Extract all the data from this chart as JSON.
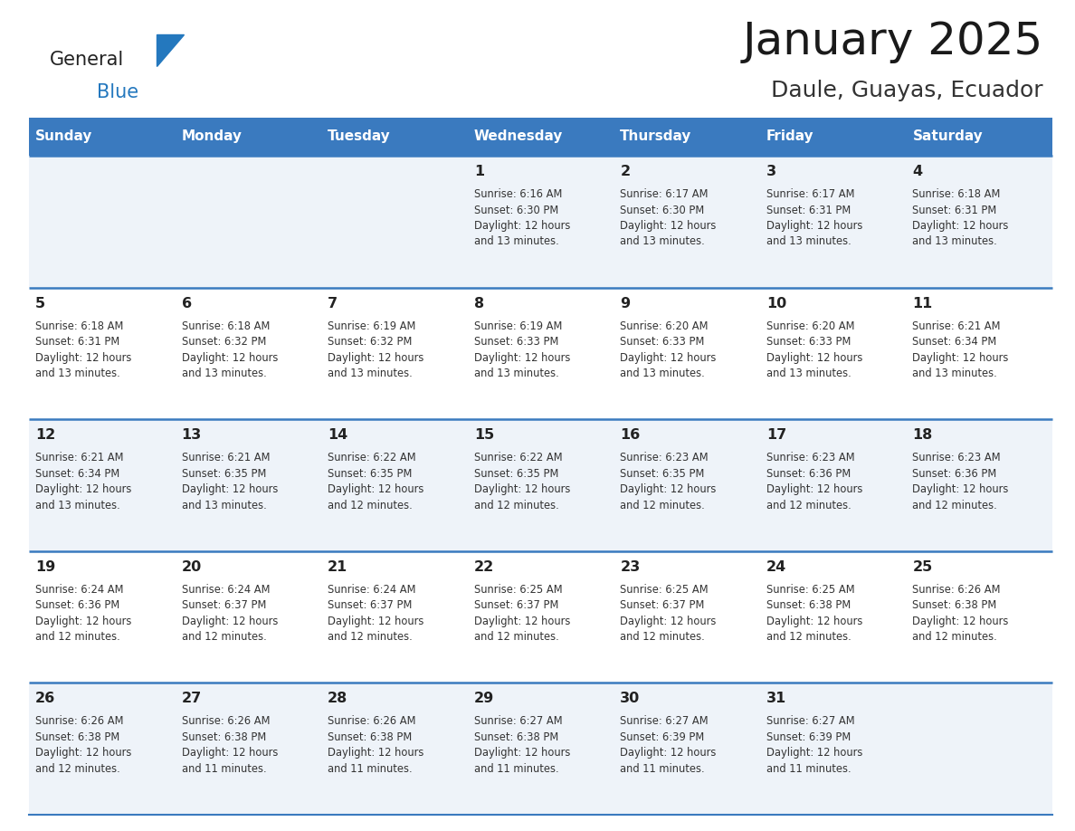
{
  "title": "January 2025",
  "subtitle": "Daule, Guayas, Ecuador",
  "header_bg": "#3a7abf",
  "header_text_color": "#ffffff",
  "weekdays": [
    "Sunday",
    "Monday",
    "Tuesday",
    "Wednesday",
    "Thursday",
    "Friday",
    "Saturday"
  ],
  "row_colors": [
    "#eef3f9",
    "#ffffff"
  ],
  "grid_line_color": "#3a7abf",
  "day_number_color": "#222222",
  "info_text_color": "#333333",
  "logo_general_color": "#222222",
  "logo_blue_color": "#2478be",
  "calendar": [
    [
      {
        "day": "",
        "info": ""
      },
      {
        "day": "",
        "info": ""
      },
      {
        "day": "",
        "info": ""
      },
      {
        "day": "1",
        "info": "Sunrise: 6:16 AM\nSunset: 6:30 PM\nDaylight: 12 hours\nand 13 minutes."
      },
      {
        "day": "2",
        "info": "Sunrise: 6:17 AM\nSunset: 6:30 PM\nDaylight: 12 hours\nand 13 minutes."
      },
      {
        "day": "3",
        "info": "Sunrise: 6:17 AM\nSunset: 6:31 PM\nDaylight: 12 hours\nand 13 minutes."
      },
      {
        "day": "4",
        "info": "Sunrise: 6:18 AM\nSunset: 6:31 PM\nDaylight: 12 hours\nand 13 minutes."
      }
    ],
    [
      {
        "day": "5",
        "info": "Sunrise: 6:18 AM\nSunset: 6:31 PM\nDaylight: 12 hours\nand 13 minutes."
      },
      {
        "day": "6",
        "info": "Sunrise: 6:18 AM\nSunset: 6:32 PM\nDaylight: 12 hours\nand 13 minutes."
      },
      {
        "day": "7",
        "info": "Sunrise: 6:19 AM\nSunset: 6:32 PM\nDaylight: 12 hours\nand 13 minutes."
      },
      {
        "day": "8",
        "info": "Sunrise: 6:19 AM\nSunset: 6:33 PM\nDaylight: 12 hours\nand 13 minutes."
      },
      {
        "day": "9",
        "info": "Sunrise: 6:20 AM\nSunset: 6:33 PM\nDaylight: 12 hours\nand 13 minutes."
      },
      {
        "day": "10",
        "info": "Sunrise: 6:20 AM\nSunset: 6:33 PM\nDaylight: 12 hours\nand 13 minutes."
      },
      {
        "day": "11",
        "info": "Sunrise: 6:21 AM\nSunset: 6:34 PM\nDaylight: 12 hours\nand 13 minutes."
      }
    ],
    [
      {
        "day": "12",
        "info": "Sunrise: 6:21 AM\nSunset: 6:34 PM\nDaylight: 12 hours\nand 13 minutes."
      },
      {
        "day": "13",
        "info": "Sunrise: 6:21 AM\nSunset: 6:35 PM\nDaylight: 12 hours\nand 13 minutes."
      },
      {
        "day": "14",
        "info": "Sunrise: 6:22 AM\nSunset: 6:35 PM\nDaylight: 12 hours\nand 12 minutes."
      },
      {
        "day": "15",
        "info": "Sunrise: 6:22 AM\nSunset: 6:35 PM\nDaylight: 12 hours\nand 12 minutes."
      },
      {
        "day": "16",
        "info": "Sunrise: 6:23 AM\nSunset: 6:35 PM\nDaylight: 12 hours\nand 12 minutes."
      },
      {
        "day": "17",
        "info": "Sunrise: 6:23 AM\nSunset: 6:36 PM\nDaylight: 12 hours\nand 12 minutes."
      },
      {
        "day": "18",
        "info": "Sunrise: 6:23 AM\nSunset: 6:36 PM\nDaylight: 12 hours\nand 12 minutes."
      }
    ],
    [
      {
        "day": "19",
        "info": "Sunrise: 6:24 AM\nSunset: 6:36 PM\nDaylight: 12 hours\nand 12 minutes."
      },
      {
        "day": "20",
        "info": "Sunrise: 6:24 AM\nSunset: 6:37 PM\nDaylight: 12 hours\nand 12 minutes."
      },
      {
        "day": "21",
        "info": "Sunrise: 6:24 AM\nSunset: 6:37 PM\nDaylight: 12 hours\nand 12 minutes."
      },
      {
        "day": "22",
        "info": "Sunrise: 6:25 AM\nSunset: 6:37 PM\nDaylight: 12 hours\nand 12 minutes."
      },
      {
        "day": "23",
        "info": "Sunrise: 6:25 AM\nSunset: 6:37 PM\nDaylight: 12 hours\nand 12 minutes."
      },
      {
        "day": "24",
        "info": "Sunrise: 6:25 AM\nSunset: 6:38 PM\nDaylight: 12 hours\nand 12 minutes."
      },
      {
        "day": "25",
        "info": "Sunrise: 6:26 AM\nSunset: 6:38 PM\nDaylight: 12 hours\nand 12 minutes."
      }
    ],
    [
      {
        "day": "26",
        "info": "Sunrise: 6:26 AM\nSunset: 6:38 PM\nDaylight: 12 hours\nand 12 minutes."
      },
      {
        "day": "27",
        "info": "Sunrise: 6:26 AM\nSunset: 6:38 PM\nDaylight: 12 hours\nand 11 minutes."
      },
      {
        "day": "28",
        "info": "Sunrise: 6:26 AM\nSunset: 6:38 PM\nDaylight: 12 hours\nand 11 minutes."
      },
      {
        "day": "29",
        "info": "Sunrise: 6:27 AM\nSunset: 6:38 PM\nDaylight: 12 hours\nand 11 minutes."
      },
      {
        "day": "30",
        "info": "Sunrise: 6:27 AM\nSunset: 6:39 PM\nDaylight: 12 hours\nand 11 minutes."
      },
      {
        "day": "31",
        "info": "Sunrise: 6:27 AM\nSunset: 6:39 PM\nDaylight: 12 hours\nand 11 minutes."
      },
      {
        "day": "",
        "info": ""
      }
    ]
  ],
  "fig_width": 11.88,
  "fig_height": 9.18,
  "dpi": 100
}
